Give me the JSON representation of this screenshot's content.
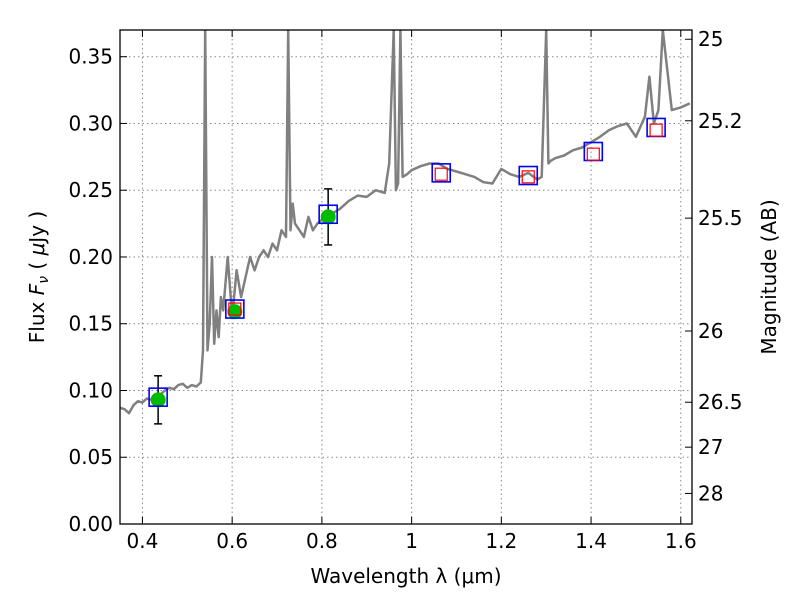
{
  "chart_data": {
    "type": "scatter",
    "xlabel": "Wavelength  λ (μm)",
    "ylabel": "Flux  F_ν  ( μJy )",
    "y2label": "Magnitude (AB)",
    "xlim": [
      0.35,
      1.625
    ],
    "ylim": [
      0.0,
      0.37
    ],
    "grid": true,
    "x_ticks": [
      0.4,
      0.6,
      0.8,
      1.0,
      1.2,
      1.4,
      1.6
    ],
    "x_tick_labels": [
      "0.4",
      "0.6",
      "0.8",
      "1",
      "1.2",
      "1.4",
      "1.6"
    ],
    "y_ticks": [
      0.0,
      0.05,
      0.1,
      0.15,
      0.2,
      0.25,
      0.3,
      0.35
    ],
    "y_tick_labels": [
      "0.00",
      "0.05",
      "0.10",
      "0.15",
      "0.20",
      "0.25",
      "0.30",
      "0.35"
    ],
    "y2_ticks": [
      {
        "label": "25",
        "mag": 25.0
      },
      {
        "label": "25.2",
        "mag": 25.2
      },
      {
        "label": "25.5",
        "mag": 25.5
      },
      {
        "label": "26",
        "mag": 26.0
      },
      {
        "label": "26.5",
        "mag": 26.5
      },
      {
        "label": "27",
        "mag": 27.0
      },
      {
        "label": "28",
        "mag": 28.0
      }
    ],
    "colors": {
      "template": "#808080",
      "observed": "#00bb00",
      "model_box": "#0000ff",
      "model_inner": "#ff0000",
      "errorbar": "#000000",
      "grid": "#888888"
    },
    "series": [
      {
        "kind": "template_spectrum",
        "x": [
          0.35,
          0.36,
          0.37,
          0.38,
          0.39,
          0.4,
          0.41,
          0.42,
          0.43,
          0.44,
          0.45,
          0.46,
          0.47,
          0.48,
          0.49,
          0.5,
          0.51,
          0.52,
          0.53,
          0.535,
          0.54,
          0.545,
          0.55,
          0.555,
          0.56,
          0.565,
          0.57,
          0.575,
          0.58,
          0.59,
          0.6,
          0.61,
          0.62,
          0.63,
          0.64,
          0.65,
          0.66,
          0.67,
          0.68,
          0.69,
          0.7,
          0.71,
          0.72,
          0.725,
          0.73,
          0.735,
          0.74,
          0.75,
          0.76,
          0.77,
          0.78,
          0.79,
          0.8,
          0.82,
          0.84,
          0.86,
          0.88,
          0.9,
          0.92,
          0.94,
          0.95,
          0.96,
          0.965,
          0.97,
          0.975,
          0.98,
          0.99,
          1.0,
          1.02,
          1.04,
          1.06,
          1.08,
          1.1,
          1.12,
          1.14,
          1.16,
          1.18,
          1.2,
          1.22,
          1.24,
          1.26,
          1.28,
          1.29,
          1.3,
          1.305,
          1.31,
          1.32,
          1.34,
          1.36,
          1.38,
          1.4,
          1.42,
          1.44,
          1.46,
          1.48,
          1.5,
          1.52,
          1.53,
          1.54,
          1.55,
          1.56,
          1.58,
          1.6,
          1.62
        ],
        "y": [
          0.087,
          0.086,
          0.083,
          0.089,
          0.092,
          0.091,
          0.094,
          0.093,
          0.096,
          0.097,
          0.1,
          0.102,
          0.101,
          0.104,
          0.105,
          0.102,
          0.104,
          0.103,
          0.106,
          0.13,
          0.37,
          0.13,
          0.15,
          0.2,
          0.135,
          0.16,
          0.14,
          0.17,
          0.16,
          0.2,
          0.155,
          0.19,
          0.17,
          0.185,
          0.2,
          0.19,
          0.2,
          0.205,
          0.2,
          0.21,
          0.205,
          0.22,
          0.215,
          0.37,
          0.22,
          0.24,
          0.225,
          0.22,
          0.215,
          0.23,
          0.22,
          0.225,
          0.228,
          0.232,
          0.236,
          0.242,
          0.246,
          0.245,
          0.25,
          0.248,
          0.27,
          0.37,
          0.25,
          0.255,
          0.37,
          0.26,
          0.262,
          0.265,
          0.268,
          0.27,
          0.27,
          0.266,
          0.264,
          0.262,
          0.26,
          0.256,
          0.255,
          0.266,
          0.262,
          0.26,
          0.263,
          0.258,
          0.26,
          0.37,
          0.27,
          0.272,
          0.274,
          0.276,
          0.28,
          0.282,
          0.286,
          0.29,
          0.295,
          0.298,
          0.3,
          0.29,
          0.305,
          0.335,
          0.3,
          0.31,
          0.37,
          0.31,
          0.312,
          0.315
        ]
      },
      {
        "kind": "observed",
        "x": [
          0.435,
          0.606,
          0.814
        ],
        "y": [
          0.093,
          0.159,
          0.23
        ],
        "yerr": [
          0.018,
          0.0,
          0.021
        ]
      },
      {
        "kind": "model_photometry_box",
        "x": [
          0.435,
          0.606,
          0.814,
          1.066,
          1.26,
          1.405,
          1.545
        ],
        "y": [
          0.095,
          0.161,
          0.232,
          0.263,
          0.261,
          0.279,
          0.297
        ]
      },
      {
        "kind": "model_photometry_inner",
        "x": [
          0.606,
          1.066,
          1.26,
          1.405,
          1.545
        ],
        "y": [
          0.161,
          0.262,
          0.26,
          0.277,
          0.295
        ]
      }
    ]
  }
}
